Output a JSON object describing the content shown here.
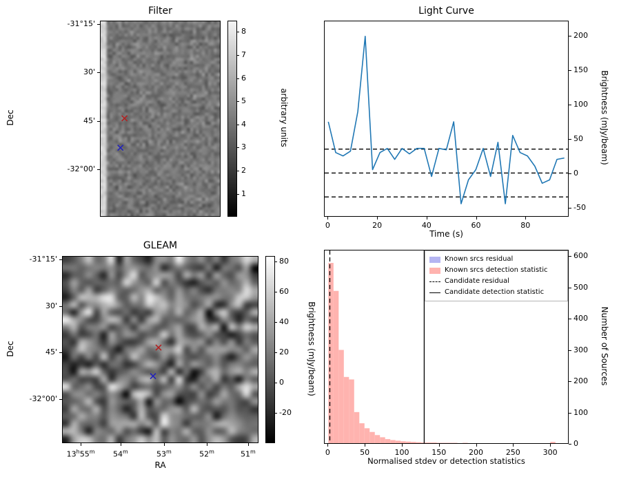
{
  "chart_data": [
    {
      "id": "filter",
      "type": "heatmap",
      "title": "Filter",
      "ylabel": "Dec",
      "yticks": [
        {
          "label": "-31°15'",
          "f": 0.018
        },
        {
          "label": "30'",
          "f": 0.263
        },
        {
          "label": "45'",
          "f": 0.512
        },
        {
          "label": "-32°00'",
          "f": 0.758
        }
      ],
      "colorbar": {
        "label": "arbitrary units",
        "ticks": [
          {
            "label": "8",
            "f": 0.056
          },
          {
            "label": "7",
            "f": 0.174
          },
          {
            "label": "6",
            "f": 0.293
          },
          {
            "label": "5",
            "f": 0.411
          },
          {
            "label": "4",
            "f": 0.529
          },
          {
            "label": "3",
            "f": 0.647
          },
          {
            "label": "2",
            "f": 0.766
          },
          {
            "label": "1",
            "f": 0.884
          }
        ],
        "top_color": "#f5f5f5",
        "bottom_color": "#000000"
      },
      "markers": [
        {
          "name": "candidate-red",
          "color": "#b22222",
          "fx": 0.2,
          "fy": 0.498
        },
        {
          "name": "reference-blue",
          "color": "#2222bb",
          "fx": 0.166,
          "fy": 0.649
        }
      ],
      "noise": {
        "cols": 40,
        "rows": 64,
        "base": 118,
        "contrast": 30,
        "seed": 1234,
        "bright_band_cols": 2
      }
    },
    {
      "id": "lightcurve",
      "type": "line",
      "title": "Light Curve",
      "xlabel": "Time (s)",
      "ylabel": "Brightness (mJy/beam)",
      "xlim": [
        -1.5,
        97.5
      ],
      "ylim": [
        -63,
        222
      ],
      "xticks": [
        0,
        20,
        40,
        60,
        80
      ],
      "yticks": [
        200,
        150,
        100,
        50,
        0,
        -50
      ],
      "line_color": "#1f77b4",
      "threshold_values": [
        35,
        0,
        -35
      ],
      "x": [
        0,
        3,
        6,
        9,
        12,
        15,
        18,
        21,
        24,
        27,
        30,
        33,
        36,
        39,
        42,
        45,
        48,
        51,
        54,
        57,
        60,
        63,
        66,
        69,
        72,
        75,
        78,
        81,
        84,
        87,
        90,
        93,
        96
      ],
      "y": [
        75,
        30,
        25,
        32,
        90,
        200,
        5,
        30,
        36,
        20,
        36,
        28,
        36,
        36,
        -5,
        36,
        34,
        75,
        -45,
        -10,
        5,
        36,
        -5,
        45,
        -45,
        55,
        30,
        25,
        10,
        -15,
        -10,
        20,
        22
      ]
    },
    {
      "id": "gleam",
      "type": "heatmap",
      "title": "GLEAM",
      "xlabel": "RA",
      "ylabel": "Dec",
      "xticks": [
        {
          "label": "13^h55^m",
          "f": 0.095
        },
        {
          "label": "54^m",
          "f": 0.298
        },
        {
          "label": "53^m",
          "f": 0.519
        },
        {
          "label": "52^m",
          "f": 0.737
        },
        {
          "label": "51^m",
          "f": 0.947
        }
      ],
      "yticks": [
        {
          "label": "-31°15'",
          "f": 0.018
        },
        {
          "label": "30'",
          "f": 0.268
        },
        {
          "label": "45'",
          "f": 0.515
        },
        {
          "label": "-32°00'",
          "f": 0.765
        }
      ],
      "colorbar": {
        "label": "Brightness (mJy/beam)",
        "ticks": [
          {
            "label": "80",
            "f": 0.029
          },
          {
            "label": "60",
            "f": 0.191
          },
          {
            "label": "40",
            "f": 0.353
          },
          {
            "label": "20",
            "f": 0.515
          },
          {
            "label": "0",
            "f": 0.676
          },
          {
            "label": "-20",
            "f": 0.838
          }
        ],
        "top_color": "#ffffff",
        "bottom_color": "#000000"
      },
      "markers": [
        {
          "name": "candidate-red",
          "color": "#b22222",
          "fx": 0.491,
          "fy": 0.489
        },
        {
          "name": "reference-blue",
          "color": "#2222bb",
          "fx": 0.463,
          "fy": 0.643
        }
      ],
      "noise": {
        "cols": 26,
        "rows": 25,
        "base": 120,
        "contrast": 95,
        "seed": 777,
        "bright_band_cols": 0
      }
    },
    {
      "id": "histogram",
      "type": "histogram",
      "xlabel": "Normalised stdev or detection statistics",
      "ylabel": "Number of Sources",
      "xlim": [
        -5,
        325
      ],
      "ylim": [
        0,
        620
      ],
      "xticks": [
        0,
        50,
        100,
        150,
        200,
        250,
        300
      ],
      "yticks": [
        0,
        100,
        200,
        300,
        400,
        500,
        600
      ],
      "bar_color": "#ffb3af",
      "bin_width": 7,
      "bin_start": 0,
      "counts": [
        580,
        490,
        300,
        213,
        205,
        100,
        64,
        48,
        36,
        26,
        19,
        13,
        10,
        8,
        6,
        5,
        4,
        3,
        2,
        2,
        2,
        1,
        1,
        1,
        1,
        0,
        1,
        0,
        0,
        0,
        0,
        0,
        0,
        0,
        0,
        0,
        0,
        0,
        0,
        0,
        0,
        0,
        0,
        4
      ],
      "vlines": [
        {
          "x": 2,
          "style": "dashed"
        },
        {
          "x": 130,
          "style": "solid"
        }
      ],
      "legend": [
        {
          "swatch": "patch",
          "color": "#b5b5f2",
          "label": "Known srcs residual"
        },
        {
          "swatch": "patch",
          "color": "#ffb3af",
          "label": "Known srcs detection statistic"
        },
        {
          "swatch": "dashed-line",
          "color": "#000000",
          "label": "Candidate residual"
        },
        {
          "swatch": "solid-line",
          "color": "#000000",
          "label": "Candidate detection statistic"
        }
      ]
    }
  ]
}
